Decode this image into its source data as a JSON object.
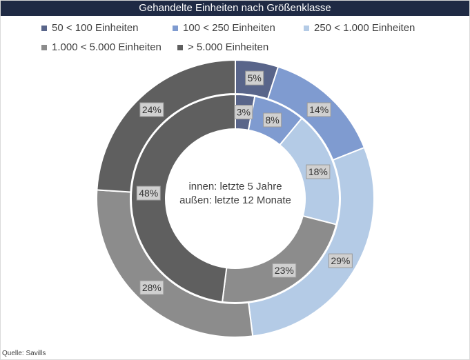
{
  "chart_data": {
    "type": "pie",
    "variant": "nested-donut",
    "title": "Gehandelte Einheiten nach Größenklasse",
    "categories": [
      "50 < 100 Einheiten",
      "100 < 250 Einheiten",
      "250 < 1.000 Einheiten",
      "1.000 < 5.000 Einheiten",
      "> 5.000 Einheiten"
    ],
    "colors": [
      "#59658a",
      "#7f9bd0",
      "#b4cbe6",
      "#8c8c8c",
      "#5f5f5f"
    ],
    "series": [
      {
        "ring": "inner",
        "values": [
          3,
          8,
          18,
          23,
          48
        ],
        "labels": [
          "3%",
          "8%",
          "18%",
          "23%",
          "48%"
        ]
      },
      {
        "ring": "outer",
        "values": [
          5,
          14,
          29,
          28,
          24
        ],
        "labels": [
          "5%",
          "14%",
          "29%",
          "28%",
          "24%"
        ]
      }
    ],
    "center_text": [
      "innen: letzte 5 Jahre",
      "außen: letzte 12 Monate"
    ],
    "legend_position": "top"
  },
  "source": "Quelle: Savills"
}
